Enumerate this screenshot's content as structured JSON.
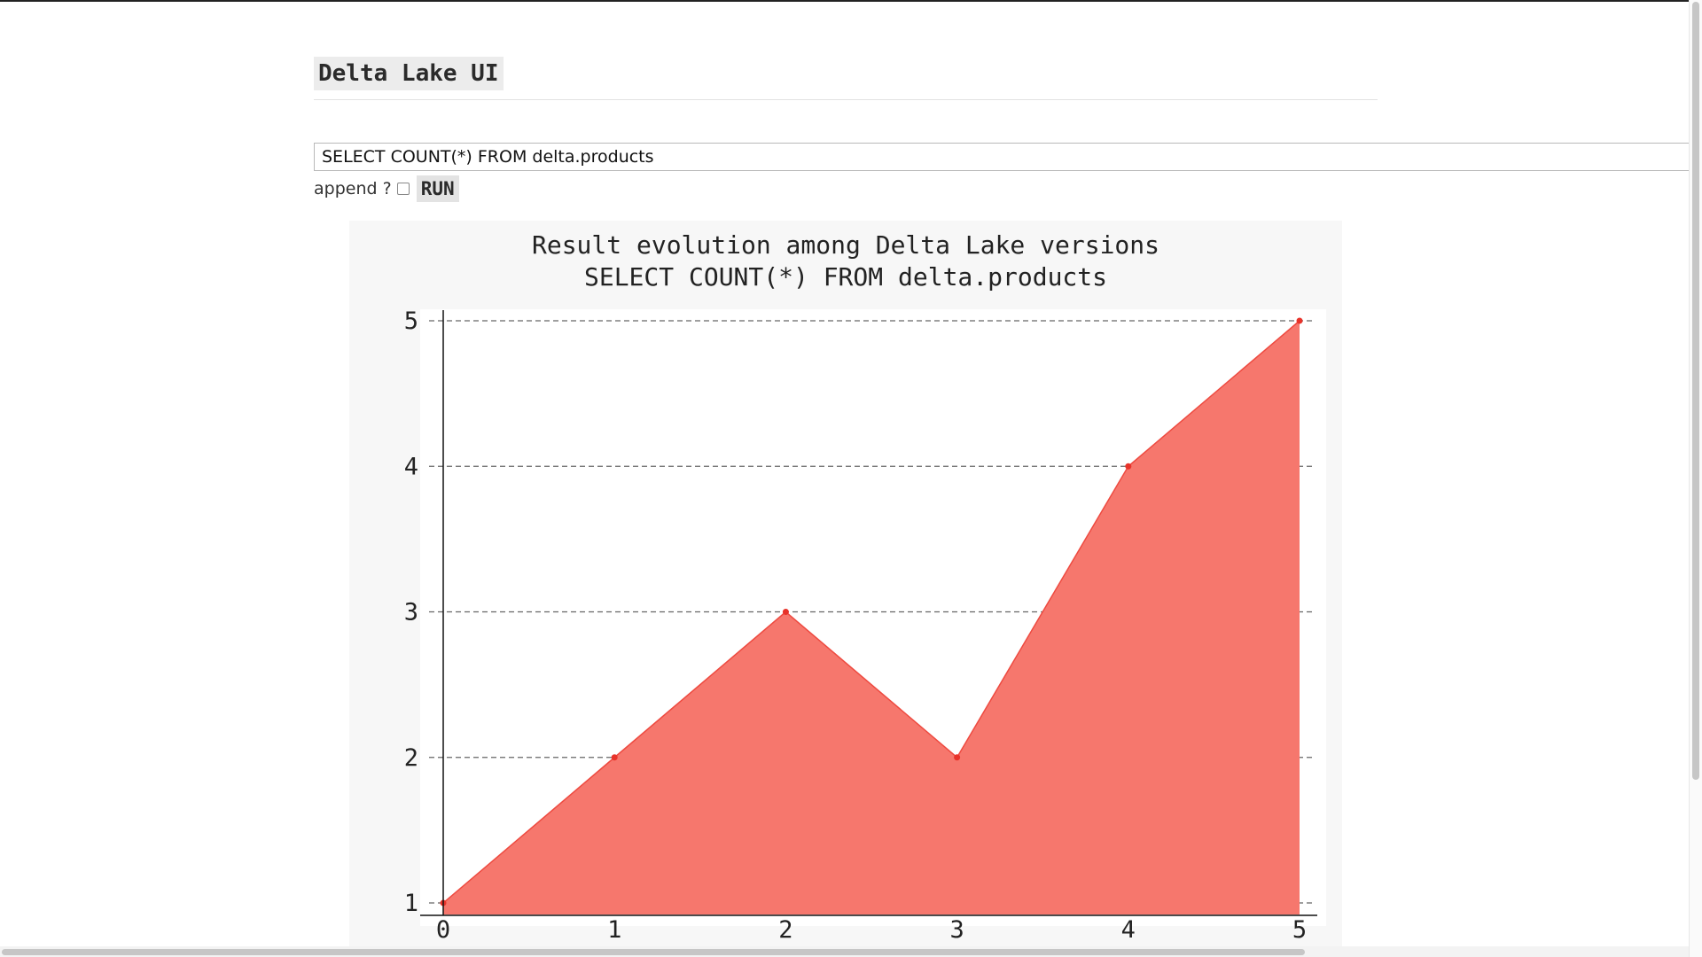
{
  "app": {
    "title": "Delta Lake UI"
  },
  "query": {
    "value": "SELECT COUNT(*) FROM delta.products"
  },
  "controls": {
    "append_label": "append ?",
    "append_checked": false,
    "run_label": "RUN"
  },
  "chart_data": {
    "type": "area",
    "title": "Result evolution among Delta Lake versions",
    "subtitle": "SELECT COUNT(*) FROM delta.products",
    "xlabel": "",
    "ylabel": "",
    "x": [
      0,
      1,
      2,
      3,
      4,
      5
    ],
    "series": [
      {
        "values": [
          1,
          2,
          3,
          2,
          4,
          5
        ]
      }
    ],
    "xlim": [
      0,
      5
    ],
    "ylim": [
      1,
      5
    ],
    "xticks": [
      0,
      1,
      2,
      3,
      4,
      5
    ],
    "yticks": [
      1,
      2,
      3,
      4,
      5
    ],
    "grid": "horizontal dashed",
    "colors": {
      "fill": "#f6776d",
      "line": "#ee4a40",
      "marker": "#e8332a"
    }
  }
}
